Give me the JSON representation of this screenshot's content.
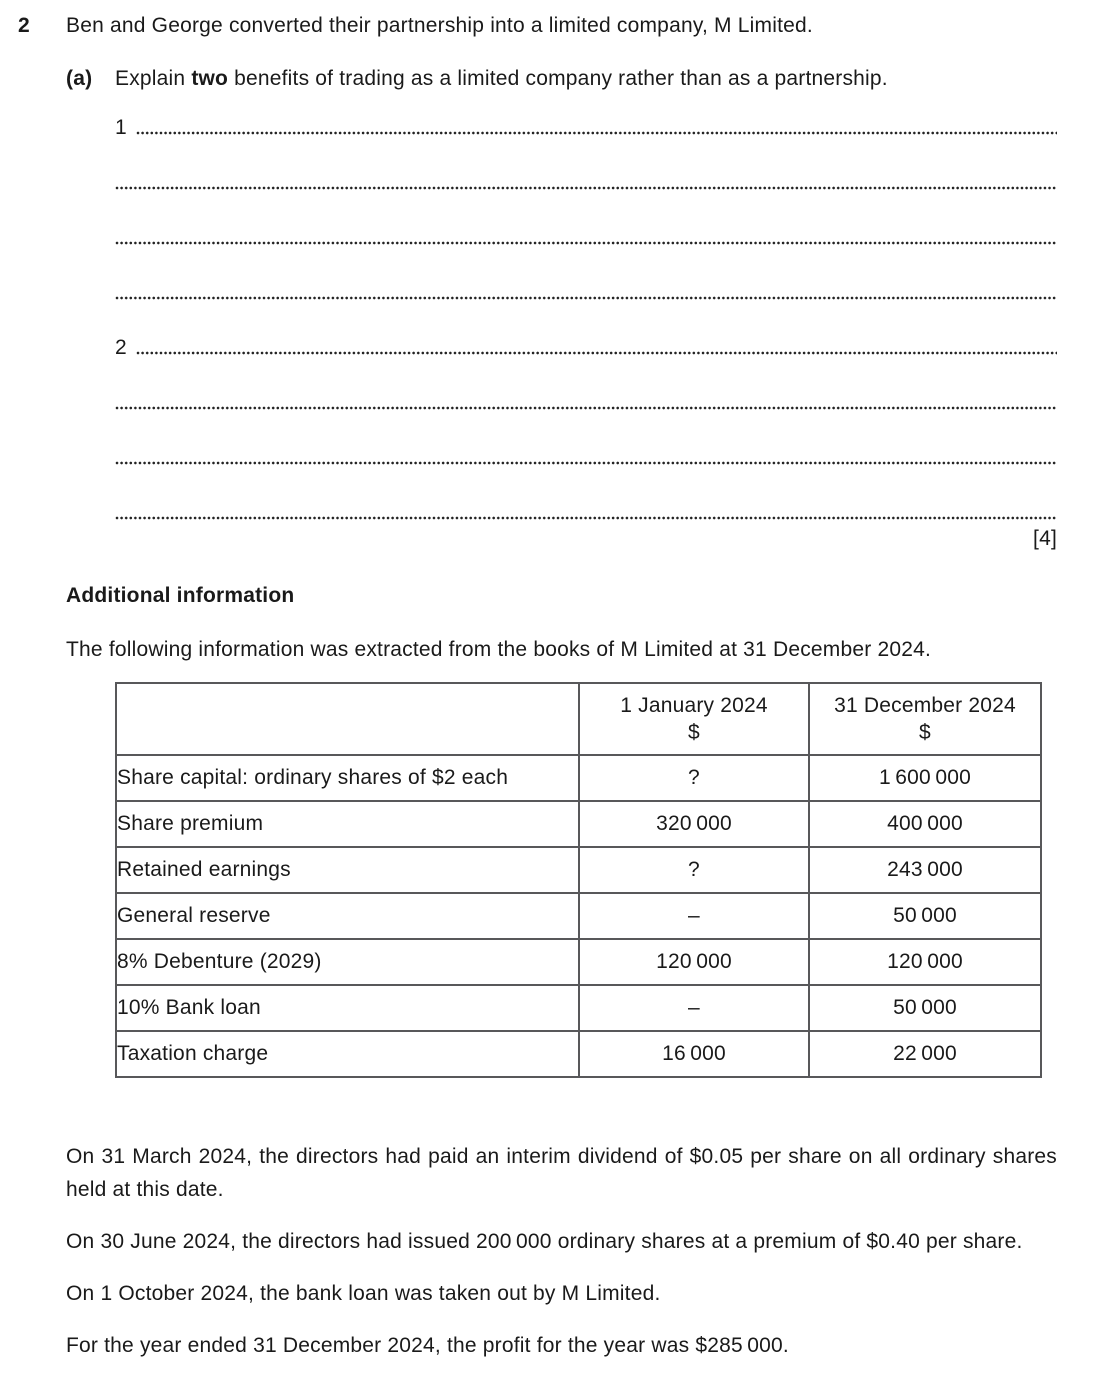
{
  "question": {
    "number": "2",
    "intro": "Ben and George converted their partnership into a limited company, M Limited.",
    "part_a": {
      "label": "(a)",
      "prompt_before": "Explain ",
      "prompt_bold": "two",
      "prompt_after": " benefits of trading as a limited company rather than as a partnership.",
      "answer_labels": [
        "1",
        "2"
      ],
      "marks": "[4]"
    }
  },
  "additional_information": {
    "heading": "Additional information",
    "intro": "The following information was extracted from the books of M Limited at 31 December 2024.",
    "table": {
      "headers": {
        "jan": {
          "title": "1 January 2024",
          "unit": "$"
        },
        "dec": {
          "title": "31 December 2024",
          "unit": "$"
        }
      },
      "rows": [
        {
          "label": "Share capital: ordinary shares of $2 each",
          "jan": "?",
          "dec": "1 600 000"
        },
        {
          "label": "Share premium",
          "jan": "320 000",
          "dec": "400 000"
        },
        {
          "label": "Retained earnings",
          "jan": "?",
          "dec": "243 000"
        },
        {
          "label": "General reserve",
          "jan": "–",
          "dec": "50 000"
        },
        {
          "label": "8% Debenture (2029)",
          "jan": "120 000",
          "dec": "120 000"
        },
        {
          "label": "10% Bank loan",
          "jan": "–",
          "dec": "50 000"
        },
        {
          "label": "Taxation charge",
          "jan": "16 000",
          "dec": "22 000"
        }
      ]
    },
    "notes": [
      "On 31 March 2024, the directors had paid an interim dividend of $0.05 per share on all ordinary shares held at this date.",
      "On 30 June 2024, the directors had issued 200 000 ordinary shares at a premium of $0.40 per share.",
      "On 1 October 2024, the bank loan was taken out by M Limited.",
      "For the year ended 31 December 2024, the profit for the year was $285 000."
    ]
  },
  "colors": {
    "text": "#1a1a1a",
    "table_border": "#58585a",
    "dot_leader": "#232323",
    "background": "#ffffff"
  }
}
